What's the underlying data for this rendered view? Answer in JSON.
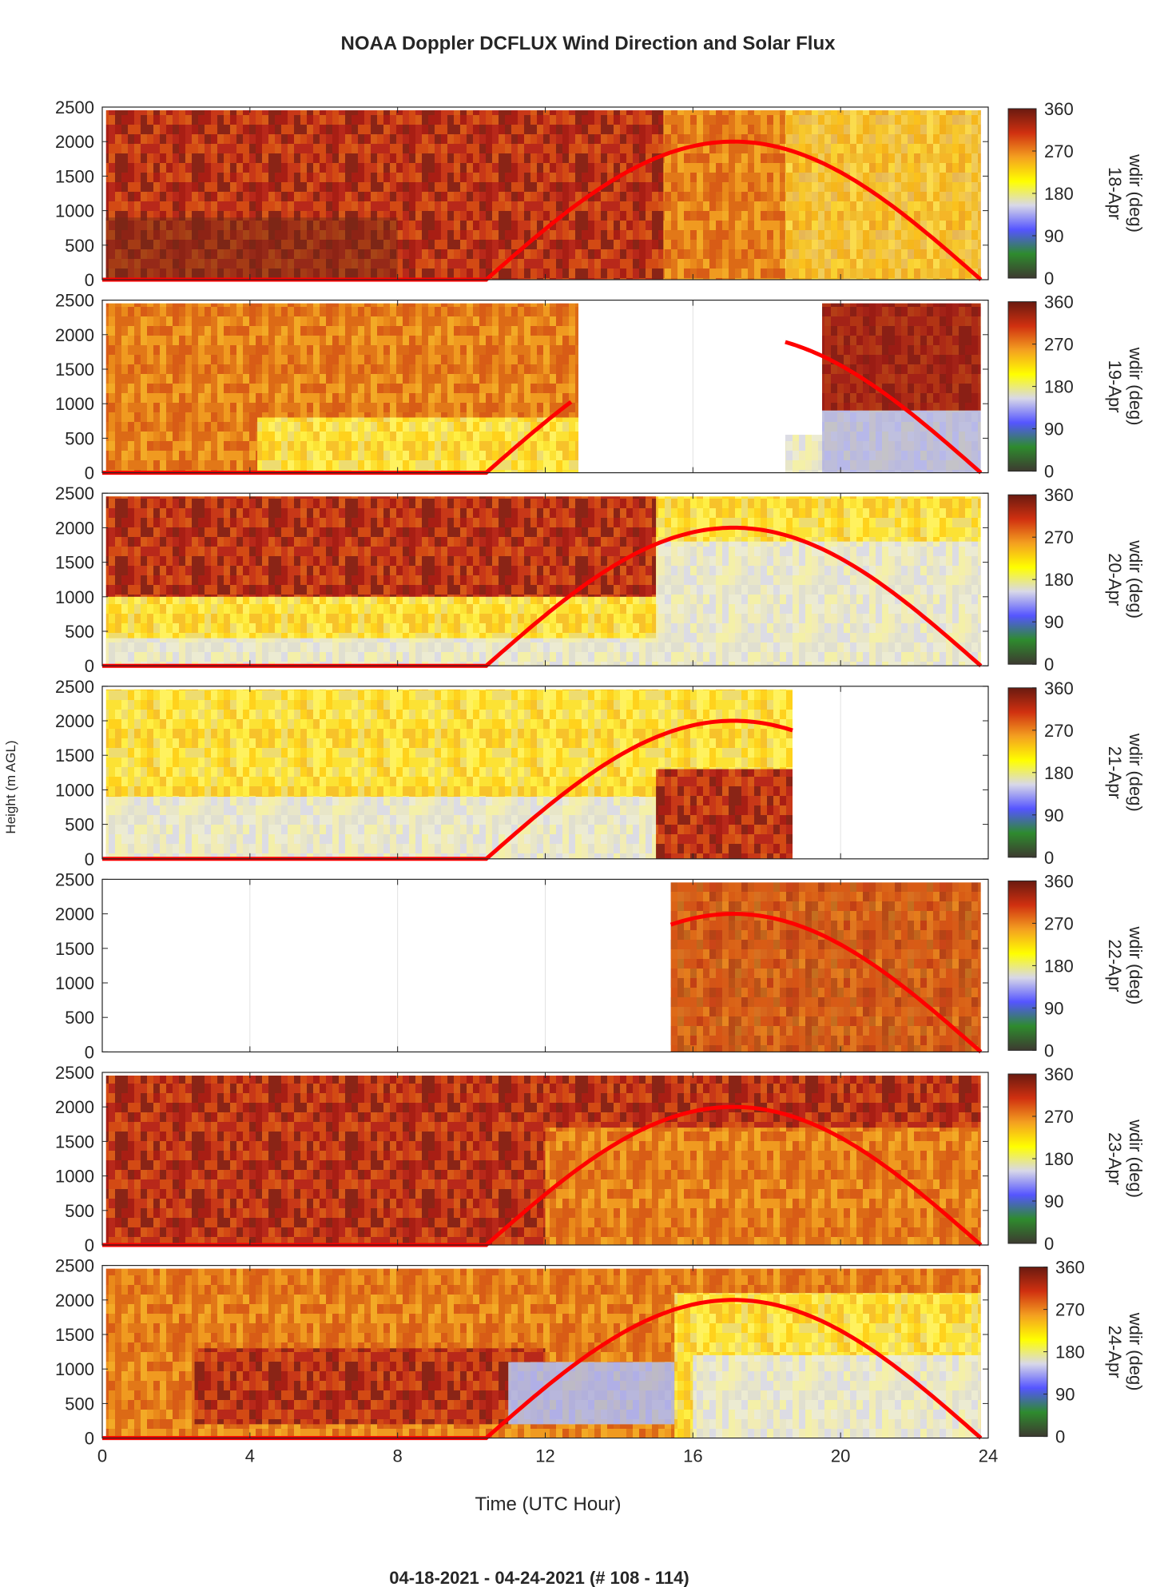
{
  "figure": {
    "title": "NOAA Doppler DCFLUX Wind Direction and Solar Flux",
    "footer": "04-18-2021 - 04-24-2021   (# 108 - 114)"
  },
  "chart_data": {
    "type": "heatmap",
    "title": "NOAA Doppler DCFLUX Wind Direction and Solar Flux",
    "xlabel": "Time (UTC Hour)",
    "ylabel": "Height (m AGL)",
    "xlim": [
      0,
      24
    ],
    "x_ticks": [
      0,
      4,
      8,
      12,
      16,
      20,
      24
    ],
    "ylim": [
      0,
      2500
    ],
    "y_ticks": [
      0,
      500,
      1000,
      1500,
      2000,
      2500
    ],
    "colorbar": {
      "label": "wdir (deg)",
      "range": [
        0,
        360
      ],
      "ticks": [
        0,
        90,
        180,
        270,
        360
      ],
      "colors": [
        "#3d3a30",
        "#2e8b2e",
        "#5555ff",
        "#d8d8e8",
        "#ffff00",
        "#f4a020",
        "#d03010",
        "#6a1a10"
      ]
    },
    "overlay_series_color": "#ff0000",
    "grid": true,
    "panels": [
      {
        "day": "18-Apr",
        "data_hours": [
          [
            0.1,
            23.8
          ]
        ],
        "solar_hours": [
          0,
          23.8
        ],
        "sunrise": 10.4,
        "peak_hour": 17.1,
        "peak_height": 2000
      },
      {
        "day": "19-Apr",
        "data_hours": [
          [
            0.1,
            12.9
          ],
          [
            18.5,
            23.8
          ]
        ],
        "solar_hours": [
          [
            0,
            12.7
          ],
          [
            18.5,
            23.8
          ]
        ],
        "sunrise": 10.4,
        "peak_hour": 17.1,
        "peak_height": 2000
      },
      {
        "day": "20-Apr",
        "data_hours": [
          [
            0.1,
            23.8
          ]
        ],
        "solar_hours": [
          0,
          23.8
        ],
        "sunrise": 10.4,
        "peak_hour": 17.1,
        "peak_height": 2000
      },
      {
        "day": "21-Apr",
        "data_hours": [
          [
            0.1,
            18.7
          ]
        ],
        "solar_hours": [
          0,
          18.7
        ],
        "sunrise": 10.4,
        "peak_hour": 17.1,
        "peak_height": 2000
      },
      {
        "day": "22-Apr",
        "data_hours": [
          [
            15.4,
            23.8
          ]
        ],
        "solar_hours": [
          15.4,
          23.8
        ],
        "sunrise": 10.4,
        "peak_hour": 17.1,
        "peak_height": 2000
      },
      {
        "day": "23-Apr",
        "data_hours": [
          [
            0.1,
            23.8
          ]
        ],
        "solar_hours": [
          0,
          23.8
        ],
        "sunrise": 10.4,
        "peak_hour": 17.1,
        "peak_height": 2000
      },
      {
        "day": "24-Apr",
        "data_hours": [
          [
            0.1,
            23.8
          ]
        ],
        "solar_hours": [
          0,
          23.8
        ],
        "sunrise": 10.4,
        "peak_hour": 17.1,
        "peak_height": 2000
      }
    ]
  }
}
